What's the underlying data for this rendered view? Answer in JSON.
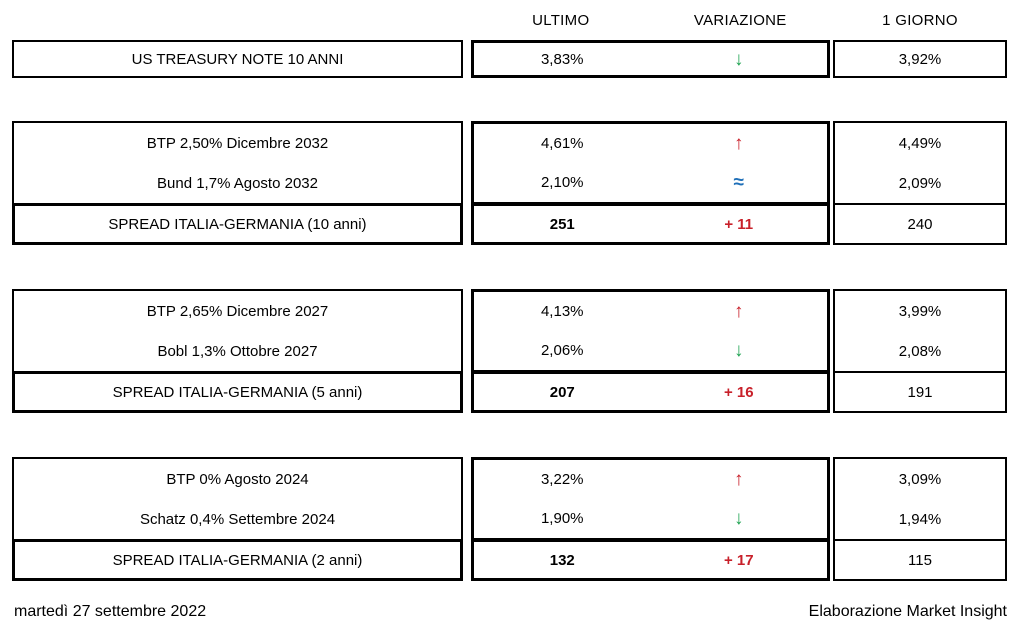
{
  "columns": {
    "ultimo": "ULTIMO",
    "variazione": "VARIAZIONE",
    "giorno": "1 GIORNO"
  },
  "treasury": {
    "label": "US TREASURY NOTE 10 ANNI",
    "ultimo": "3,83%",
    "variazione_icon": "arrow-down-icon",
    "variazione_glyph": "↓",
    "variazione_color": "#21A453",
    "giorno": "3,92%"
  },
  "groups": [
    {
      "rows": [
        {
          "label": "BTP 2,50% Dicembre 2032",
          "ultimo": "4,61%",
          "variazione_icon": "arrow-up-icon",
          "variazione_glyph": "↑",
          "variazione_color": "#C8202A",
          "giorno": "4,49%"
        },
        {
          "label": "Bund 1,7% Agosto 2032",
          "ultimo": "2,10%",
          "variazione_icon": "approx-equal-icon",
          "variazione_glyph": "≈",
          "variazione_color": "#1E6FB8",
          "giorno": "2,09%"
        }
      ],
      "spread": {
        "label": "SPREAD ITALIA-GERMANIA (10 anni)",
        "ultimo": "251",
        "variazione": "+ 11",
        "variazione_color": "#C8202A",
        "giorno": "240"
      }
    },
    {
      "rows": [
        {
          "label": "BTP 2,65% Dicembre 2027",
          "ultimo": "4,13%",
          "variazione_icon": "arrow-up-icon",
          "variazione_glyph": "↑",
          "variazione_color": "#C8202A",
          "giorno": "3,99%"
        },
        {
          "label": "Bobl 1,3% Ottobre 2027",
          "ultimo": "2,06%",
          "variazione_icon": "arrow-down-icon",
          "variazione_glyph": "↓",
          "variazione_color": "#21A453",
          "giorno": "2,08%"
        }
      ],
      "spread": {
        "label": "SPREAD ITALIA-GERMANIA (5 anni)",
        "ultimo": "207",
        "variazione": "+ 16",
        "variazione_color": "#C8202A",
        "giorno": "191"
      }
    },
    {
      "rows": [
        {
          "label": "BTP 0% Agosto 2024",
          "ultimo": "3,22%",
          "variazione_icon": "arrow-up-icon",
          "variazione_glyph": "↑",
          "variazione_color": "#C8202A",
          "giorno": "3,09%"
        },
        {
          "label": "Schatz 0,4% Settembre 2024",
          "ultimo": "1,90%",
          "variazione_icon": "arrow-down-icon",
          "variazione_glyph": "↓",
          "variazione_color": "#21A453",
          "giorno": "1,94%"
        }
      ],
      "spread": {
        "label": "SPREAD ITALIA-GERMANIA (2 anni)",
        "ultimo": "132",
        "variazione": "+ 17",
        "variazione_color": "#C8202A",
        "giorno": "115"
      }
    }
  ],
  "footer": {
    "date": "martedì 27 settembre 2022",
    "credit": "Elaborazione Market Insight"
  },
  "colors": {
    "up_red": "#C8202A",
    "down_green": "#21A453",
    "flat_blue": "#1E6FB8",
    "border": "#000000"
  }
}
